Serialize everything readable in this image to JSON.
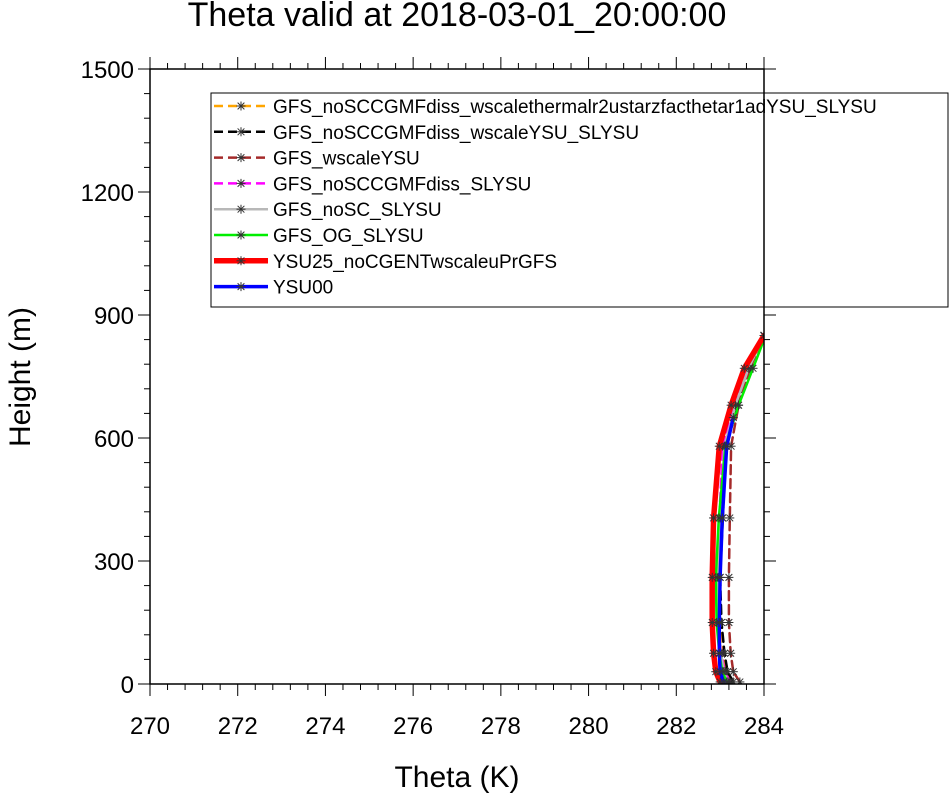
{
  "chart_data": {
    "type": "line",
    "title": "Theta valid at 2018-03-01_20:00:00",
    "xlabel": "Theta (K)",
    "ylabel": "Height (m)",
    "xlim": [
      270,
      284
    ],
    "ylim": [
      0,
      1500
    ],
    "xticks": [
      "270",
      "272",
      "274",
      "276",
      "278",
      "280",
      "282",
      "284"
    ],
    "yticks": [
      "0",
      "300",
      "600",
      "900",
      "1200",
      "1500"
    ],
    "grid": false,
    "legend_position": "top-right",
    "series": [
      {
        "name": "GFS_noSCCGMFdiss_wscalethermalr2ustarzfacthetar1adYSU_SLYSU",
        "color": "#ffa500",
        "dash": "dash",
        "width": 2.5,
        "x": [
          283.25,
          283.12,
          283.05,
          282.98,
          282.95,
          283.0,
          283.08,
          283.35,
          283.65,
          284.0
        ],
        "y": [
          5,
          30,
          75,
          150,
          260,
          405,
          580,
          680,
          770,
          850
        ]
      },
      {
        "name": "GFS_noSCCGMFdiss_wscaleYSU_SLYSU",
        "color": "#000000",
        "dash": "dash",
        "width": 2.5,
        "x": [
          283.3,
          283.17,
          283.1,
          283.03,
          283.0,
          283.06,
          283.14,
          283.38,
          283.65,
          284.0
        ],
        "y": [
          5,
          30,
          75,
          150,
          260,
          405,
          580,
          680,
          770,
          850
        ]
      },
      {
        "name": "GFS_wscaleYSU",
        "color": "#a52a2a",
        "dash": "dash",
        "width": 2.5,
        "x": [
          283.45,
          283.3,
          283.24,
          283.2,
          283.2,
          283.22,
          283.25,
          283.42,
          283.68,
          284.0
        ],
        "y": [
          5,
          30,
          75,
          150,
          260,
          405,
          580,
          680,
          770,
          850
        ]
      },
      {
        "name": "GFS_noSCCGMFdiss_SLYSU",
        "color": "#ff00ff",
        "dash": "dash",
        "width": 2.5,
        "x": [
          283.22,
          283.1,
          283.03,
          282.96,
          282.93,
          282.98,
          283.06,
          283.33,
          283.63,
          284.0
        ],
        "y": [
          5,
          30,
          75,
          150,
          260,
          405,
          580,
          680,
          770,
          850
        ]
      },
      {
        "name": "GFS_noSC_SLYSU",
        "color": "#b8b8b8",
        "dash": "solid",
        "width": 2.5,
        "x": [
          283.18,
          283.08,
          283.02,
          282.97,
          282.95,
          283.0,
          283.1,
          283.35,
          283.65,
          284.0
        ],
        "y": [
          5,
          30,
          75,
          150,
          260,
          405,
          580,
          680,
          770,
          850
        ]
      },
      {
        "name": "GFS_OG_SLYSU",
        "color": "#00ee00",
        "dash": "solid",
        "width": 2.5,
        "x": [
          283.15,
          283.05,
          282.98,
          282.92,
          282.9,
          282.97,
          283.12,
          283.42,
          283.75,
          284.0
        ],
        "y": [
          5,
          30,
          75,
          150,
          260,
          405,
          580,
          680,
          770,
          840
        ]
      },
      {
        "name": "YSU25_noCGENTwscaleuPrGFS",
        "color": "#ff0000",
        "dash": "solid",
        "width": 5.5,
        "x": [
          283.0,
          282.9,
          282.85,
          282.82,
          282.82,
          282.85,
          282.98,
          283.25,
          283.55,
          284.0
        ],
        "y": [
          5,
          30,
          75,
          150,
          260,
          405,
          580,
          680,
          770,
          850
        ]
      },
      {
        "name": "YSU00",
        "color": "#0000ff",
        "dash": "solid",
        "width": 3.5,
        "x": [
          283.08,
          283.0,
          282.98,
          282.98,
          283.0,
          283.05,
          283.15,
          283.3
        ],
        "y": [
          5,
          30,
          75,
          150,
          260,
          405,
          580,
          650
        ]
      }
    ]
  }
}
